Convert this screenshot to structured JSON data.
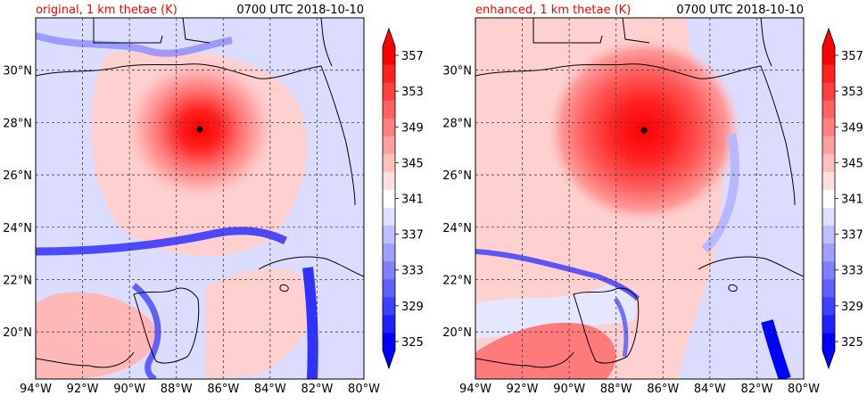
{
  "colors": {
    "title_accent": "#ff0000",
    "frame": "#000000",
    "grid": "#404040",
    "coastline": "#000000",
    "storm_center": "#000000"
  },
  "colorbar": {
    "levels": [
      325,
      327,
      329,
      331,
      333,
      335,
      337,
      339,
      341,
      343,
      345,
      347,
      349,
      351,
      353,
      355,
      357,
      359
    ],
    "tick_labels": [
      "325",
      "329",
      "333",
      "337",
      "341",
      "345",
      "349",
      "353",
      "357"
    ],
    "tick_values": [
      325,
      329,
      333,
      337,
      341,
      345,
      349,
      353,
      357
    ],
    "extend": "both",
    "colormap": "bwr"
  },
  "chart_data": [
    {
      "type": "heatmap",
      "title": "original, 1 km thetae (K)",
      "subtitle": "0700 UTC 2018-10-10",
      "xlim": [
        -94,
        -80
      ],
      "ylim": [
        18.2,
        32.0
      ],
      "xticks": [
        -94,
        -92,
        -90,
        -88,
        -86,
        -84,
        -82,
        -80
      ],
      "xtick_labels": [
        "94°W",
        "92°W",
        "90°W",
        "88°W",
        "86°W",
        "84°W",
        "82°W",
        "80°W"
      ],
      "yticks": [
        20,
        22,
        24,
        26,
        28,
        30
      ],
      "ytick_labels": [
        "20°N",
        "22°N",
        "24°N",
        "26°N",
        "28°N",
        "30°N"
      ],
      "grid": true,
      "storm_center": {
        "lon": -87.0,
        "lat": 27.8
      },
      "core_value": 359,
      "colorbar_ticks": [
        325,
        329,
        333,
        337,
        341,
        345,
        349,
        353,
        357
      ]
    },
    {
      "type": "heatmap",
      "title": "enhanced, 1 km thetae (K)",
      "subtitle": "0700 UTC 2018-10-10",
      "xlim": [
        -94,
        -80
      ],
      "ylim": [
        18.2,
        32.0
      ],
      "xticks": [
        -94,
        -92,
        -90,
        -88,
        -86,
        -84,
        -82,
        -80
      ],
      "xtick_labels": [
        "94°W",
        "92°W",
        "90°W",
        "88°W",
        "86°W",
        "84°W",
        "82°W",
        "80°W"
      ],
      "yticks": [
        20,
        22,
        24,
        26,
        28,
        30
      ],
      "ytick_labels": [
        "20°N",
        "22°N",
        "24°N",
        "26°N",
        "28°N",
        "30°N"
      ],
      "grid": true,
      "storm_center": {
        "lon": -86.9,
        "lat": 27.8
      },
      "core_value": 359,
      "colorbar_ticks": [
        325,
        329,
        333,
        337,
        341,
        345,
        349,
        353,
        357
      ]
    }
  ]
}
